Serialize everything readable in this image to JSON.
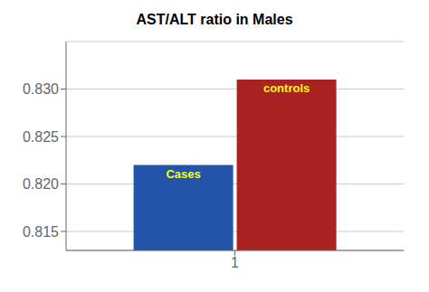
{
  "chart_data": {
    "type": "bar",
    "title": "AST/ALT ratio in Males",
    "categories": [
      "1"
    ],
    "series": [
      {
        "name": "Cases",
        "color": "#2255AA",
        "values": [
          0.822
        ]
      },
      {
        "name": "controls",
        "color": "#AA2222",
        "values": [
          0.831
        ]
      }
    ],
    "ylim": [
      0.813,
      0.835
    ],
    "yticks": [
      0.815,
      {
        "value": 0.82,
        "label": "0.820"
      },
      {
        "value": 0.825,
        "label": "0.825"
      },
      {
        "value": 0.83,
        "label": "0.830"
      }
    ],
    "grid": true
  }
}
